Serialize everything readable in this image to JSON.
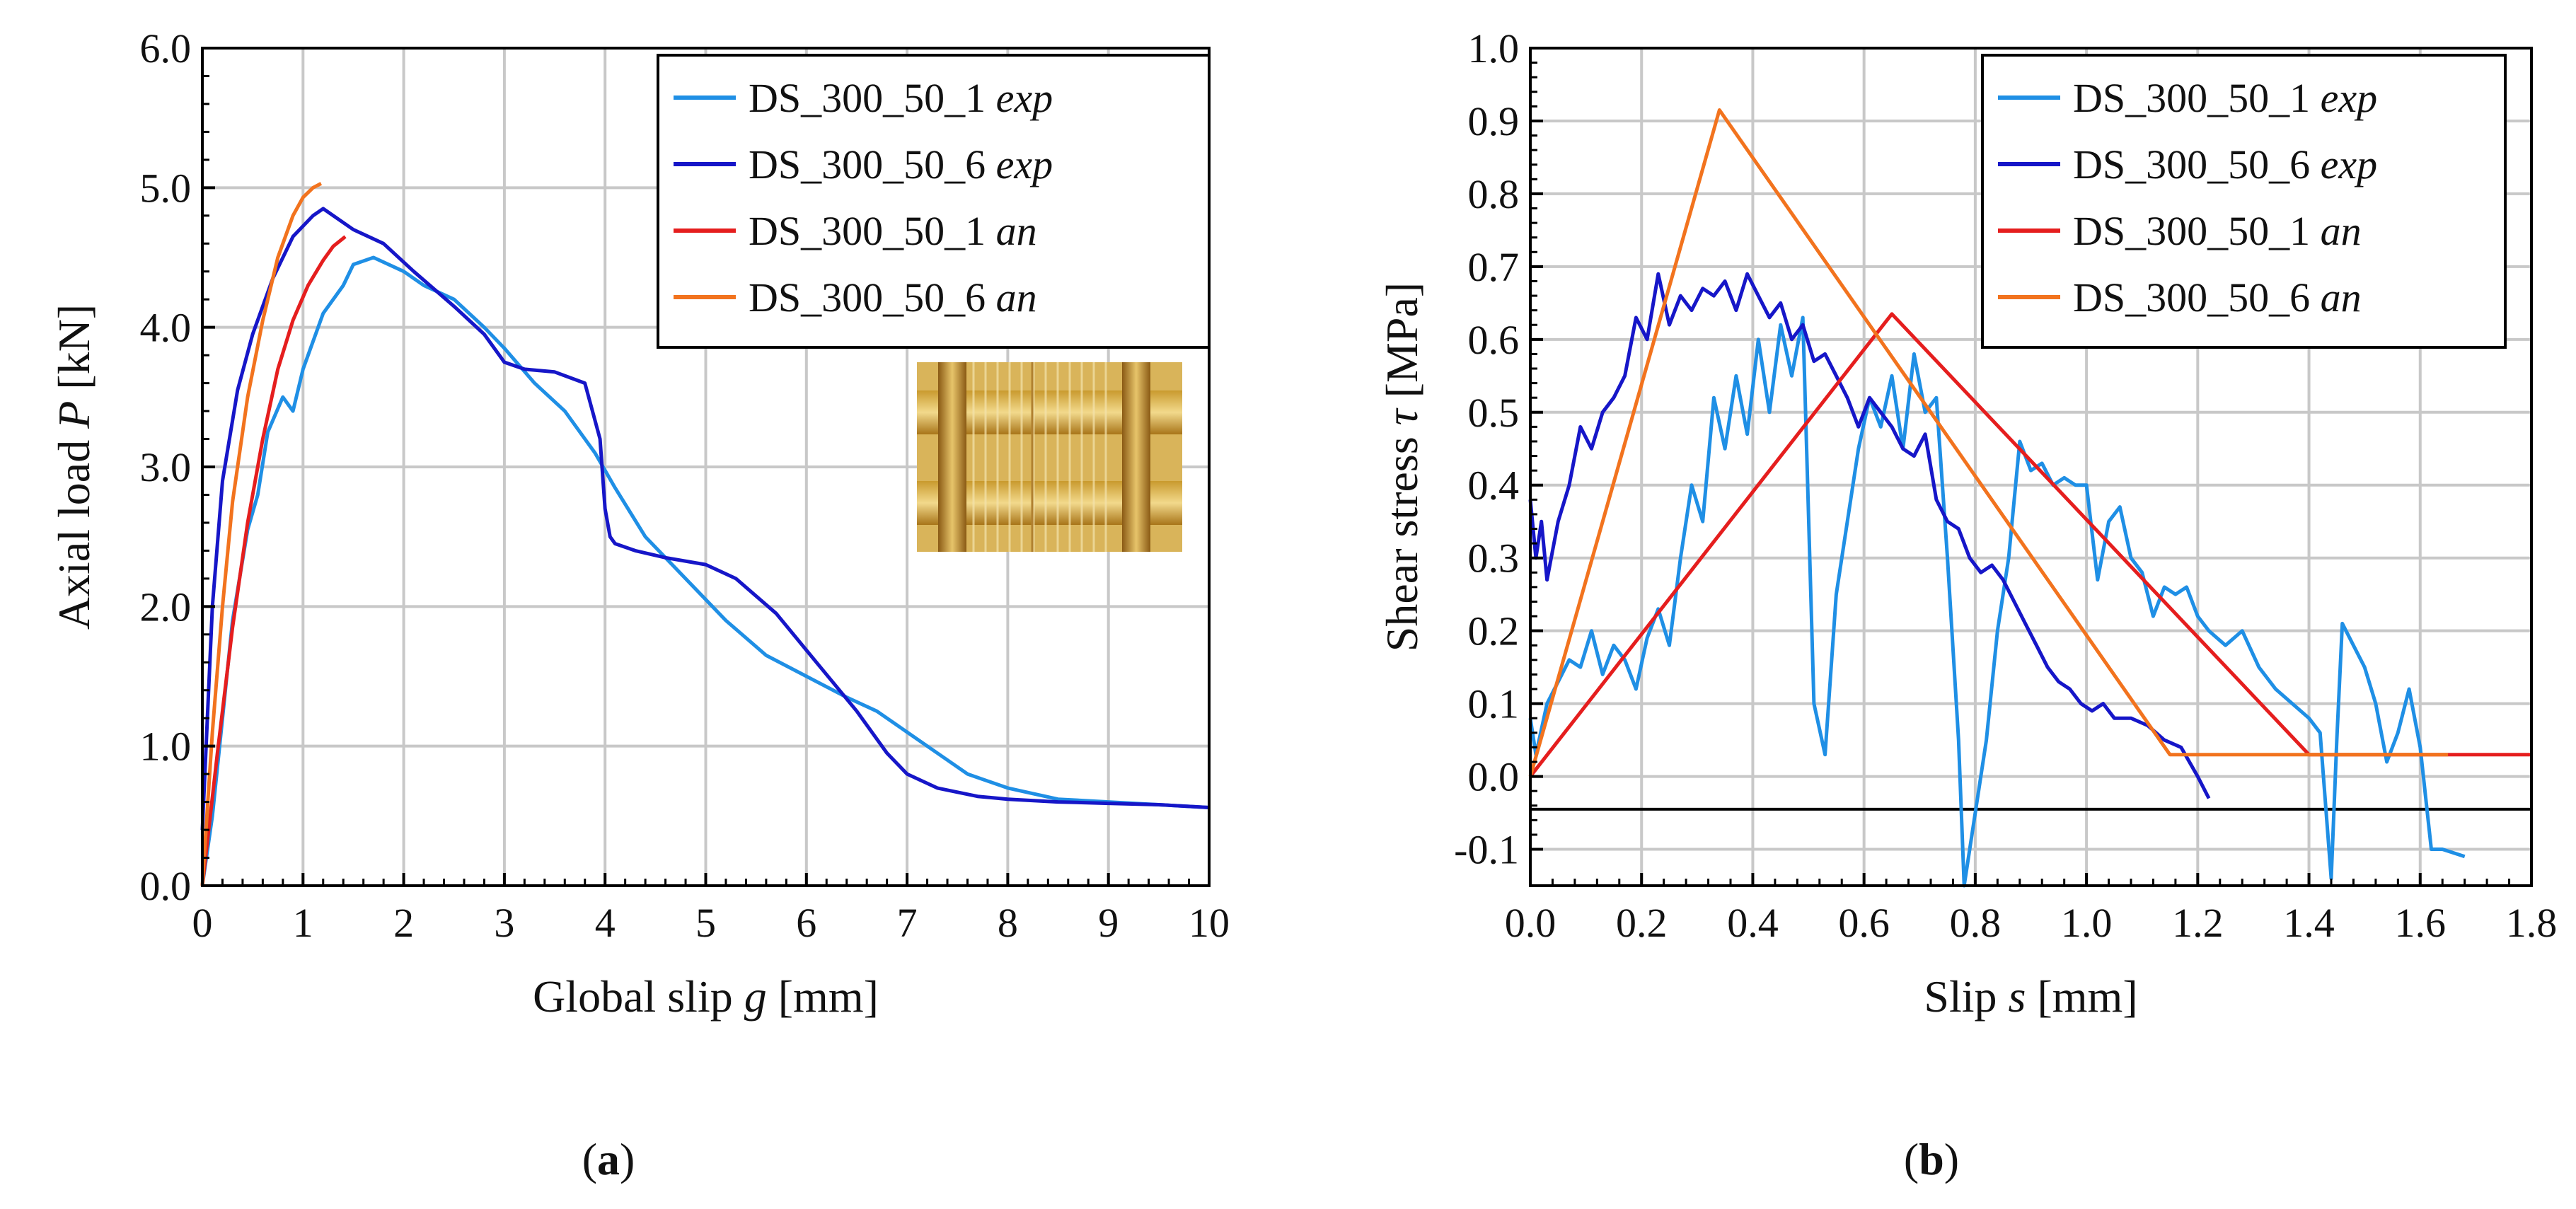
{
  "chart_data": [
    {
      "id": "a",
      "type": "line",
      "panel_label": "a",
      "xlabel": "Global slip",
      "xlabel_symbol": "g",
      "xlabel_unit": "[mm]",
      "ylabel": "Axial load",
      "ylabel_symbol": "P",
      "ylabel_unit": "[kN]",
      "xlim": [
        0,
        10
      ],
      "ylim": [
        0,
        6
      ],
      "xticks": [
        "0",
        "1",
        "2",
        "3",
        "4",
        "5",
        "6",
        "7",
        "8",
        "9",
        "10"
      ],
      "yticks": [
        "0.0",
        "1.0",
        "2.0",
        "3.0",
        "4.0",
        "5.0",
        "6.0"
      ],
      "grid": true,
      "legend_position": "top-right",
      "inset_image": "textile-grid-photo",
      "series": [
        {
          "name": "DS_300_50_1",
          "suffix": "exp",
          "color": "#1f8fe5",
          "x": [
            0,
            0.1,
            0.2,
            0.3,
            0.45,
            0.55,
            0.65,
            0.8,
            0.9,
            1.0,
            1.2,
            1.4,
            1.5,
            1.7,
            2.0,
            2.2,
            2.5,
            2.8,
            3.0,
            3.3,
            3.6,
            3.9,
            4.1,
            4.4,
            4.8,
            5.2,
            5.6,
            6.0,
            6.4,
            6.7,
            7.0,
            7.3,
            7.6,
            8.0,
            8.5,
            9.0,
            9.5,
            10.0
          ],
          "y": [
            0,
            0.5,
            1.2,
            1.9,
            2.55,
            2.8,
            3.25,
            3.5,
            3.4,
            3.7,
            4.1,
            4.3,
            4.45,
            4.5,
            4.4,
            4.3,
            4.2,
            4.0,
            3.85,
            3.6,
            3.4,
            3.1,
            2.85,
            2.5,
            2.2,
            1.9,
            1.65,
            1.5,
            1.35,
            1.25,
            1.1,
            0.95,
            0.8,
            0.7,
            0.62,
            0.6,
            0.58,
            0.56
          ]
        },
        {
          "name": "DS_300_50_6",
          "suffix": "exp",
          "color": "#1616c8",
          "x": [
            0,
            0.05,
            0.1,
            0.2,
            0.35,
            0.5,
            0.7,
            0.9,
            1.1,
            1.2,
            1.3,
            1.5,
            1.8,
            2.1,
            2.5,
            2.8,
            3.0,
            3.2,
            3.5,
            3.8,
            3.95,
            4.0,
            4.05,
            4.1,
            4.3,
            4.6,
            5.0,
            5.3,
            5.7,
            6.1,
            6.5,
            6.8,
            7.0,
            7.3,
            7.7,
            8.0,
            8.5,
            9.0,
            9.5,
            10.0
          ],
          "y": [
            0.4,
            1.2,
            2.0,
            2.9,
            3.55,
            3.95,
            4.35,
            4.65,
            4.8,
            4.85,
            4.8,
            4.7,
            4.6,
            4.4,
            4.15,
            3.95,
            3.75,
            3.7,
            3.68,
            3.6,
            3.2,
            2.7,
            2.5,
            2.45,
            2.4,
            2.35,
            2.3,
            2.2,
            1.95,
            1.6,
            1.25,
            0.95,
            0.8,
            0.7,
            0.64,
            0.62,
            0.6,
            0.59,
            0.58,
            0.56
          ]
        },
        {
          "name": "DS_300_50_1",
          "suffix": "an",
          "color": "#e51e1e",
          "x": [
            0,
            0.15,
            0.3,
            0.45,
            0.6,
            0.75,
            0.9,
            1.05,
            1.2,
            1.3,
            1.42
          ],
          "y": [
            0,
            0.95,
            1.85,
            2.6,
            3.2,
            3.7,
            4.05,
            4.3,
            4.48,
            4.58,
            4.65
          ]
        },
        {
          "name": "DS_300_50_6",
          "suffix": "an",
          "color": "#f2731e",
          "x": [
            0,
            0.1,
            0.2,
            0.3,
            0.45,
            0.6,
            0.75,
            0.9,
            1.0,
            1.1,
            1.18
          ],
          "y": [
            0,
            1.1,
            2.0,
            2.75,
            3.5,
            4.05,
            4.5,
            4.8,
            4.93,
            5.0,
            5.03
          ]
        }
      ]
    },
    {
      "id": "b",
      "type": "line",
      "panel_label": "b",
      "xlabel": "Slip",
      "xlabel_symbol": "s",
      "xlabel_unit": "[mm]",
      "ylabel": "Shear stress",
      "ylabel_symbol": "τ",
      "ylabel_unit": "[MPa]",
      "xlim": [
        0,
        1.8
      ],
      "ylim": [
        -0.15,
        1.0
      ],
      "xticks": [
        "0.0",
        "0.2",
        "0.4",
        "0.6",
        "0.8",
        "1.0",
        "1.2",
        "1.4",
        "1.6",
        "1.8"
      ],
      "yticks": [
        "-0.1",
        "0.0",
        "0.1",
        "0.2",
        "0.3",
        "0.4",
        "0.5",
        "0.6",
        "0.7",
        "0.8",
        "0.9",
        "1.0"
      ],
      "reference_line_y": -0.045,
      "grid": true,
      "legend_position": "top-right",
      "series": [
        {
          "name": "DS_300_50_1",
          "suffix": "exp",
          "color": "#1f8fe5",
          "x": [
            0,
            0.01,
            0.03,
            0.05,
            0.07,
            0.09,
            0.11,
            0.13,
            0.15,
            0.17,
            0.19,
            0.21,
            0.23,
            0.25,
            0.27,
            0.29,
            0.31,
            0.33,
            0.35,
            0.37,
            0.39,
            0.41,
            0.43,
            0.45,
            0.47,
            0.49,
            0.51,
            0.53,
            0.55,
            0.57,
            0.59,
            0.61,
            0.63,
            0.65,
            0.67,
            0.69,
            0.71,
            0.73,
            0.75,
            0.77,
            0.78,
            0.8,
            0.82,
            0.84,
            0.86,
            0.88,
            0.9,
            0.92,
            0.94,
            0.96,
            0.98,
            1.0,
            1.02,
            1.04,
            1.06,
            1.08,
            1.1,
            1.12,
            1.14,
            1.16,
            1.18,
            1.2,
            1.22,
            1.25,
            1.28,
            1.31,
            1.34,
            1.37,
            1.4,
            1.42,
            1.44,
            1.45,
            1.46,
            1.48,
            1.5,
            1.52,
            1.54,
            1.56,
            1.58,
            1.6,
            1.62,
            1.64,
            1.68
          ],
          "y": [
            0.08,
            0.03,
            0.1,
            0.13,
            0.16,
            0.15,
            0.2,
            0.14,
            0.18,
            0.16,
            0.12,
            0.19,
            0.23,
            0.18,
            0.3,
            0.4,
            0.35,
            0.52,
            0.45,
            0.55,
            0.47,
            0.6,
            0.5,
            0.62,
            0.55,
            0.63,
            0.1,
            0.03,
            0.25,
            0.35,
            0.45,
            0.52,
            0.48,
            0.55,
            0.45,
            0.58,
            0.5,
            0.52,
            0.3,
            0.05,
            -0.15,
            -0.05,
            0.05,
            0.2,
            0.3,
            0.46,
            0.42,
            0.43,
            0.4,
            0.41,
            0.4,
            0.4,
            0.27,
            0.35,
            0.37,
            0.3,
            0.28,
            0.22,
            0.26,
            0.25,
            0.26,
            0.22,
            0.2,
            0.18,
            0.2,
            0.15,
            0.12,
            0.1,
            0.08,
            0.06,
            -0.14,
            0.05,
            0.21,
            0.18,
            0.15,
            0.1,
            0.02,
            0.06,
            0.12,
            0.04,
            -0.1,
            -0.1,
            -0.11
          ]
        },
        {
          "name": "DS_300_50_6",
          "suffix": "exp",
          "color": "#1616c8",
          "x": [
            0,
            0.01,
            0.02,
            0.03,
            0.05,
            0.07,
            0.09,
            0.11,
            0.13,
            0.15,
            0.17,
            0.19,
            0.21,
            0.23,
            0.25,
            0.27,
            0.29,
            0.31,
            0.33,
            0.35,
            0.37,
            0.39,
            0.41,
            0.43,
            0.45,
            0.47,
            0.49,
            0.51,
            0.53,
            0.55,
            0.57,
            0.59,
            0.61,
            0.63,
            0.65,
            0.67,
            0.69,
            0.71,
            0.73,
            0.75,
            0.77,
            0.79,
            0.81,
            0.83,
            0.85,
            0.87,
            0.89,
            0.91,
            0.93,
            0.95,
            0.97,
            0.99,
            1.01,
            1.03,
            1.05,
            1.08,
            1.11,
            1.14,
            1.17,
            1.2,
            1.22
          ],
          "y": [
            0.38,
            0.3,
            0.35,
            0.27,
            0.35,
            0.4,
            0.48,
            0.45,
            0.5,
            0.52,
            0.55,
            0.63,
            0.6,
            0.69,
            0.62,
            0.66,
            0.64,
            0.67,
            0.66,
            0.68,
            0.64,
            0.69,
            0.66,
            0.63,
            0.65,
            0.6,
            0.62,
            0.57,
            0.58,
            0.55,
            0.52,
            0.48,
            0.52,
            0.5,
            0.48,
            0.45,
            0.44,
            0.47,
            0.38,
            0.35,
            0.34,
            0.3,
            0.28,
            0.29,
            0.27,
            0.24,
            0.21,
            0.18,
            0.15,
            0.13,
            0.12,
            0.1,
            0.09,
            0.1,
            0.08,
            0.08,
            0.07,
            0.05,
            0.04,
            0.0,
            -0.03
          ]
        },
        {
          "name": "DS_300_50_1",
          "suffix": "an",
          "color": "#e51e1e",
          "x": [
            0,
            0.65,
            1.4,
            1.8
          ],
          "y": [
            0,
            0.635,
            0.03,
            0.03
          ]
        },
        {
          "name": "DS_300_50_6",
          "suffix": "an",
          "color": "#f2731e",
          "x": [
            0,
            0.34,
            1.15,
            1.65
          ],
          "y": [
            0,
            0.915,
            0.03,
            0.03
          ]
        }
      ]
    }
  ]
}
